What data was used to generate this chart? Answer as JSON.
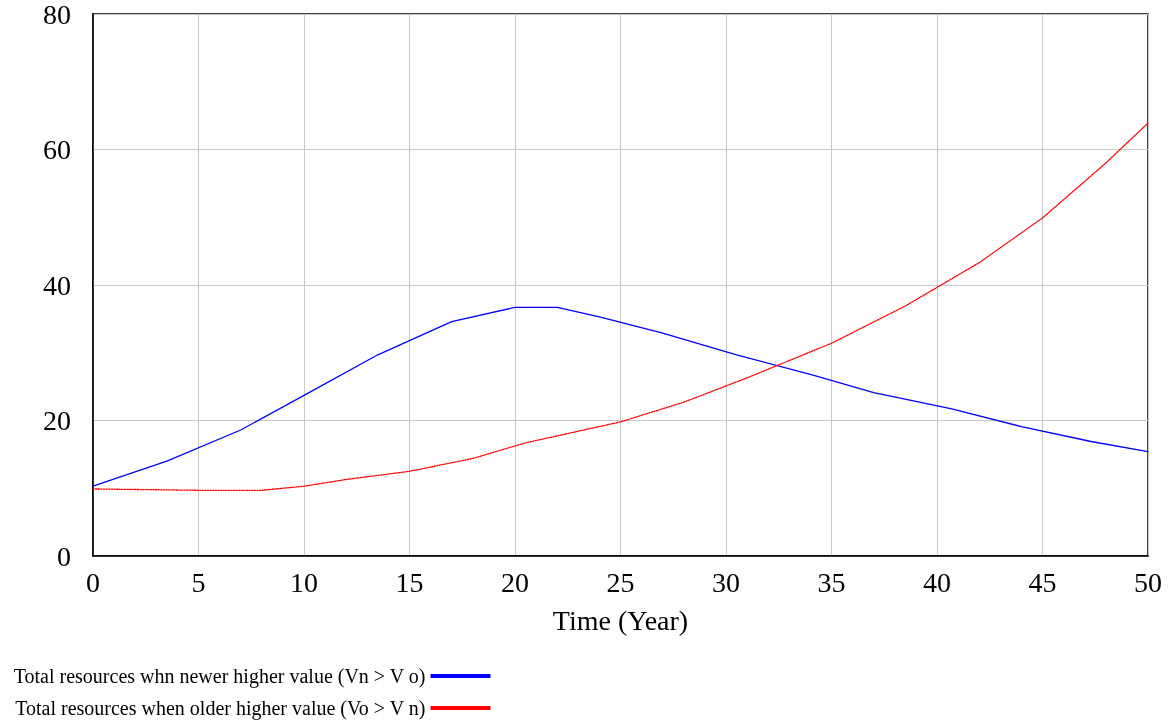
{
  "chart_data": {
    "type": "line",
    "xlabel": "Time (Year)",
    "xlim": [
      0,
      50
    ],
    "xticks": [
      0,
      5,
      10,
      15,
      20,
      25,
      30,
      35,
      40,
      45,
      50
    ],
    "ylim": [
      0,
      80
    ],
    "yticks": [
      0,
      20,
      40,
      60,
      80
    ],
    "grid": true,
    "legend": "bottom",
    "series": [
      {
        "name": "Total resources whn newer higher value (Vn > V o)",
        "color": "#0000ff",
        "line_style": "solid",
        "x": [
          0,
          3.5,
          7,
          10,
          13.5,
          17,
          20,
          22,
          24,
          27,
          30.5,
          34,
          37,
          40.7,
          44,
          47.3,
          50
        ],
        "values": [
          10.3,
          14,
          18.6,
          23.7,
          29.7,
          34.6,
          36.7,
          36.7,
          35.3,
          32.9,
          29.7,
          26.8,
          24.1,
          21.7,
          19.1,
          16.9,
          15.4
        ]
      },
      {
        "name": "Total resources when older higher value (Vo > V n)",
        "color": "#ff0000",
        "line_style": "dotted",
        "x": [
          0,
          5,
          8,
          10,
          12,
          15,
          18,
          20.5,
          25,
          28,
          31,
          35,
          38.5,
          42,
          45,
          48,
          50
        ],
        "values": [
          9.9,
          9.7,
          9.7,
          10.3,
          11.3,
          12.5,
          14.4,
          16.7,
          19.8,
          22.7,
          26.3,
          31.4,
          36.9,
          43.3,
          49.9,
          58,
          63.9
        ]
      }
    ]
  }
}
